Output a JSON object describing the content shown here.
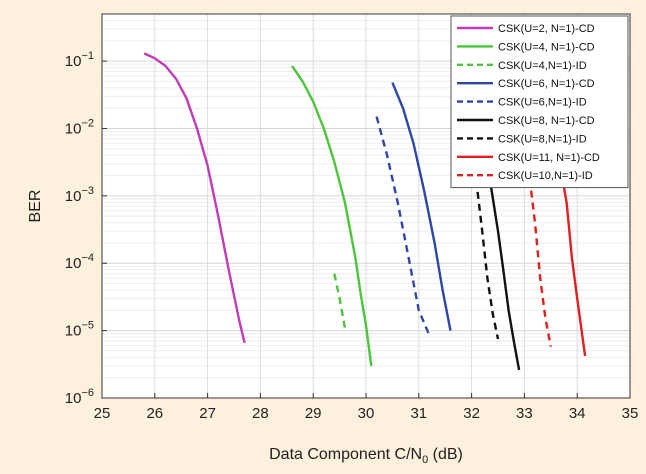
{
  "chart_data": {
    "type": "line",
    "title": "",
    "xlabel": "Data Component C/N",
    "xlabel_sub": "0",
    "xlabel_unit": " (dB)",
    "ylabel": "BER",
    "xlim": [
      25,
      35
    ],
    "ylim": [
      1e-06,
      0.5
    ],
    "yscale": "log",
    "grid": true,
    "legend_position": "top-right",
    "x_ticks": [
      25,
      26,
      27,
      28,
      29,
      30,
      31,
      32,
      33,
      34,
      35
    ],
    "y_ticks": [
      {
        "value": 0.1,
        "base": "10",
        "exp": "−1"
      },
      {
        "value": 0.01,
        "base": "10",
        "exp": "−2"
      },
      {
        "value": 0.001,
        "base": "10",
        "exp": "−3"
      },
      {
        "value": 0.0001,
        "base": "10",
        "exp": "−4"
      },
      {
        "value": 1e-05,
        "base": "10",
        "exp": "−5"
      },
      {
        "value": 1e-06,
        "base": "10",
        "exp": "−6"
      }
    ],
    "series": [
      {
        "name": "CSK(U=2, N=1)-CD",
        "color": "#c03cb8",
        "style": "solid",
        "x": [
          25.8,
          26.0,
          26.2,
          26.4,
          26.6,
          26.8,
          27.0,
          27.2,
          27.4,
          27.6,
          27.7
        ],
        "y": [
          0.13,
          0.11,
          0.085,
          0.055,
          0.028,
          0.01,
          0.0028,
          0.0005,
          8e-05,
          1.4e-05,
          6.6e-06
        ]
      },
      {
        "name": "CSK(U=4, N=1)-CD",
        "color": "#4cc43c",
        "style": "solid",
        "x": [
          28.6,
          28.8,
          29.0,
          29.2,
          29.4,
          29.6,
          29.8,
          29.9,
          30.0,
          30.1
        ],
        "y": [
          0.085,
          0.05,
          0.025,
          0.01,
          0.0032,
          0.0008,
          0.00012,
          3.5e-05,
          1.2e-05,
          3e-06
        ]
      },
      {
        "name": "CSK(U=4,N=1)-ID",
        "color": "#4cc43c",
        "style": "dashed",
        "x": [
          29.4,
          29.5,
          29.6
        ],
        "y": [
          7e-05,
          3e-05,
          1.1e-05
        ]
      },
      {
        "name": "CSK(U=6, N=1)-CD",
        "color": "#2f46a8",
        "style": "solid",
        "x": [
          30.5,
          30.7,
          30.9,
          31.1,
          31.3,
          31.45,
          31.6
        ],
        "y": [
          0.048,
          0.02,
          0.006,
          0.0012,
          0.0002,
          4e-05,
          1e-05
        ]
      },
      {
        "name": "CSK(U=6,N=1)-ID",
        "color": "#2f46a8",
        "style": "dashed",
        "x": [
          30.2,
          30.4,
          30.6,
          30.8,
          31.0,
          31.2
        ],
        "y": [
          0.015,
          0.004,
          0.0008,
          0.00013,
          2e-05,
          8.5e-06
        ]
      },
      {
        "name": "CSK(U=8, N=1)-CD",
        "color": "#111111",
        "style": "solid",
        "x": [
          32.3,
          32.5,
          32.6,
          32.7,
          32.8,
          32.9
        ],
        "y": [
          0.003,
          0.0003,
          8e-05,
          2e-05,
          7e-06,
          2.6e-06
        ]
      },
      {
        "name": "CSK(U=8,N=1)-ID",
        "color": "#111111",
        "style": "dashed",
        "x": [
          31.9,
          32.0,
          32.1,
          32.2,
          32.3,
          32.4,
          32.5
        ],
        "y": [
          0.013,
          0.005,
          0.0014,
          0.0003,
          6e-05,
          1.8e-05,
          7.5e-06
        ]
      },
      {
        "name": "CSK(U=11, N=1)-CD",
        "color": "#e02020",
        "style": "solid",
        "x": [
          33.7,
          33.8,
          33.9,
          34.0,
          34.1,
          34.15
        ],
        "y": [
          0.0022,
          0.0008,
          0.00012,
          3e-05,
          8e-06,
          4.2e-06
        ]
      },
      {
        "name": "CSK(U=10,N=1)-ID",
        "color": "#e02020",
        "style": "dashed",
        "x": [
          33.1,
          33.2,
          33.3,
          33.4,
          33.5
        ],
        "y": [
          0.0018,
          0.0004,
          6e-05,
          1.5e-05,
          5.8e-06
        ]
      }
    ]
  }
}
